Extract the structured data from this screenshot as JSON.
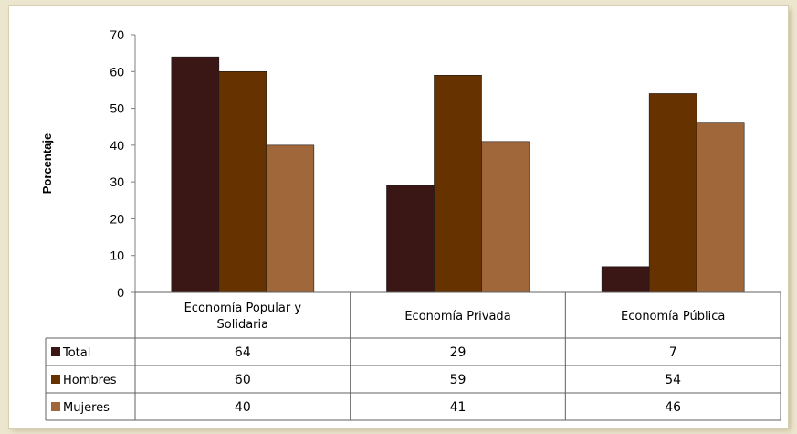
{
  "chart_data": {
    "type": "bar",
    "title": "",
    "xlabel": "",
    "ylabel": "Porcentaje",
    "ylim": [
      0,
      70
    ],
    "yticks": [
      0,
      10,
      20,
      30,
      40,
      50,
      60,
      70
    ],
    "grid": false,
    "legend": "data-table-left",
    "categories": [
      [
        "Economía Popular y",
        "Solidaria"
      ],
      [
        "Economía Privada"
      ],
      [
        "Economía Pública"
      ]
    ],
    "series": [
      {
        "name": "Total",
        "color": "#3a1615",
        "values": [
          64,
          29,
          7
        ]
      },
      {
        "name": "Hombres",
        "color": "#663300",
        "values": [
          60,
          59,
          54
        ]
      },
      {
        "name": "Mujeres",
        "color": "#a0673a",
        "values": [
          40,
          41,
          46
        ]
      }
    ]
  },
  "colors": {
    "page_background": "#ede6cf",
    "panel_background": "#ffffff"
  }
}
